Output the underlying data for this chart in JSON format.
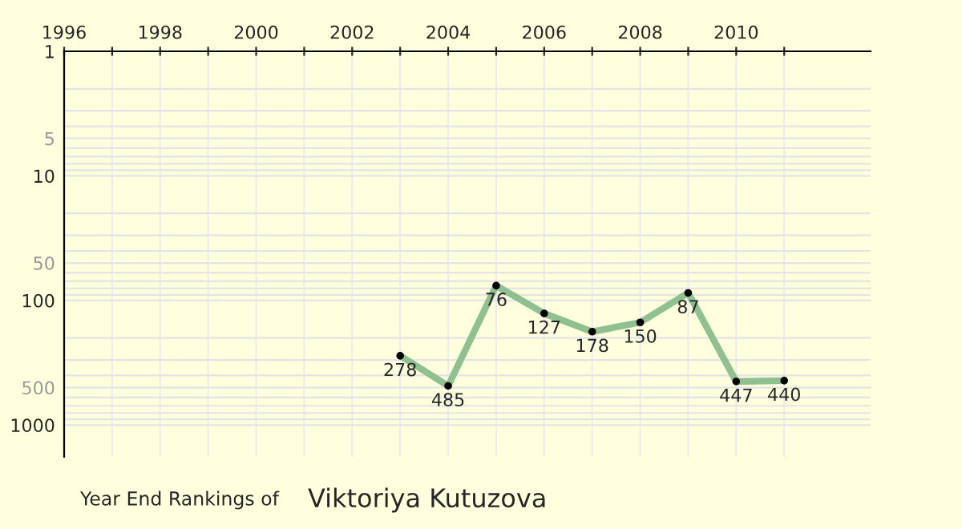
{
  "chart_data": {
    "type": "line",
    "title": "Year End Rankings of",
    "subtitle": "Viktoriya Kutuzova",
    "x": [
      2003,
      2004,
      2005,
      2006,
      2007,
      2008,
      2009,
      2010,
      2011
    ],
    "series": [
      {
        "color": "#8fc08f",
        "values": [
          278,
          485,
          76,
          127,
          178,
          150,
          87,
          447,
          440
        ]
      }
    ],
    "data_labels": true,
    "marker": "circle",
    "line_style": "solid",
    "log": "y",
    "grid": true,
    "xlim": [
      1996,
      2012.8
    ],
    "xticks": [
      1996,
      {
        "value": 1997,
        "label": null
      },
      1998,
      {
        "value": 1999,
        "label": null
      },
      2000,
      {
        "value": 2001,
        "label": null
      },
      2002,
      {
        "value": 2003,
        "label": null
      },
      2004,
      {
        "value": 2005,
        "label": null
      },
      2006,
      {
        "value": 2007,
        "label": null
      },
      2008,
      {
        "value": 2009,
        "label": null
      },
      2010,
      {
        "value": 2011,
        "label": null
      }
    ],
    "ylim": [
      1800,
      1
    ],
    "yticks": [
      1,
      {
        "value": 2,
        "label": null
      },
      {
        "value": 3,
        "label": null
      },
      {
        "value": 4,
        "label": null
      },
      5,
      {
        "value": 6,
        "label": null
      },
      {
        "value": 7,
        "label": null
      },
      {
        "value": 8,
        "label": null
      },
      {
        "value": 9,
        "label": null
      },
      10,
      {
        "value": 20,
        "label": null
      },
      {
        "value": 30,
        "label": null
      },
      {
        "value": 40,
        "label": null
      },
      50,
      {
        "value": 60,
        "label": null
      },
      {
        "value": 70,
        "label": null
      },
      {
        "value": 80,
        "label": null
      },
      {
        "value": 90,
        "label": null
      },
      100,
      {
        "value": 200,
        "label": null
      },
      {
        "value": 300,
        "label": null
      },
      {
        "value": 400,
        "label": null
      },
      500,
      {
        "value": 600,
        "label": null
      },
      {
        "value": 700,
        "label": null
      },
      {
        "value": 800,
        "label": null
      },
      {
        "value": 900,
        "label": null
      },
      1000
    ]
  }
}
